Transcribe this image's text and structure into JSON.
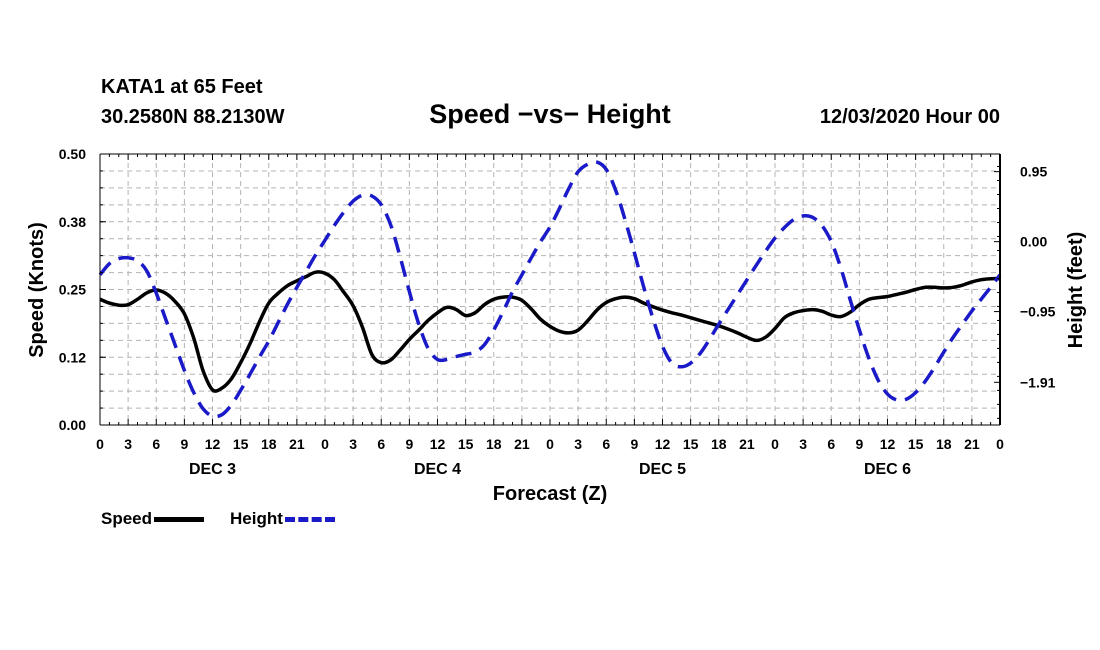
{
  "header": {
    "station": "KATA1 at 65 Feet",
    "coords": "30.2580N 88.2130W",
    "title": "Speed −vs− Height",
    "run_time": "12/03/2020 Hour 00"
  },
  "chart_data": {
    "type": "line",
    "title": "Speed −vs− Height",
    "xlabel": "Forecast (Z)",
    "ylabel": "Speed (Knots)",
    "ylabel_right": "Height (feet)",
    "x_unit": "hours from 12/03/2020 00Z",
    "xlim": [
      0,
      96
    ],
    "ylim": [
      0,
      0.5
    ],
    "ylim_right": [
      -2.49,
      1.19
    ],
    "grid": true,
    "yticks": [
      {
        "value": 0.0,
        "label": "0.00"
      },
      {
        "value": 0.125,
        "label": "0.12"
      },
      {
        "value": 0.25,
        "label": "0.25"
      },
      {
        "value": 0.375,
        "label": "0.38"
      },
      {
        "value": 0.5,
        "label": "0.50"
      }
    ],
    "yticks_right": [
      {
        "value": 0.95,
        "label": "0.95"
      },
      {
        "value": 0.0,
        "label": "0.00"
      },
      {
        "value": -0.95,
        "label": "−0.95"
      },
      {
        "value": -1.91,
        "label": "−1.91"
      }
    ],
    "xticks": [
      {
        "x": 0,
        "label": "0"
      },
      {
        "x": 3,
        "label": "3"
      },
      {
        "x": 6,
        "label": "6"
      },
      {
        "x": 9,
        "label": "9"
      },
      {
        "x": 12,
        "label": "12"
      },
      {
        "x": 15,
        "label": "15"
      },
      {
        "x": 18,
        "label": "18"
      },
      {
        "x": 21,
        "label": "21"
      },
      {
        "x": 24,
        "label": "0"
      },
      {
        "x": 27,
        "label": "3"
      },
      {
        "x": 30,
        "label": "6"
      },
      {
        "x": 33,
        "label": "9"
      },
      {
        "x": 36,
        "label": "12"
      },
      {
        "x": 39,
        "label": "15"
      },
      {
        "x": 42,
        "label": "18"
      },
      {
        "x": 45,
        "label": "21"
      },
      {
        "x": 48,
        "label": "0"
      },
      {
        "x": 51,
        "label": "3"
      },
      {
        "x": 54,
        "label": "6"
      },
      {
        "x": 57,
        "label": "9"
      },
      {
        "x": 60,
        "label": "12"
      },
      {
        "x": 63,
        "label": "15"
      },
      {
        "x": 66,
        "label": "18"
      },
      {
        "x": 69,
        "label": "21"
      },
      {
        "x": 72,
        "label": "0"
      },
      {
        "x": 75,
        "label": "3"
      },
      {
        "x": 78,
        "label": "6"
      },
      {
        "x": 81,
        "label": "9"
      },
      {
        "x": 84,
        "label": "12"
      },
      {
        "x": 87,
        "label": "15"
      },
      {
        "x": 90,
        "label": "18"
      },
      {
        "x": 93,
        "label": "21"
      },
      {
        "x": 96,
        "label": "0"
      }
    ],
    "day_labels": [
      {
        "x": 12,
        "label": "DEC 3"
      },
      {
        "x": 36,
        "label": "DEC 4"
      },
      {
        "x": 60,
        "label": "DEC 5"
      },
      {
        "x": 84,
        "label": "DEC 6"
      }
    ],
    "series": [
      {
        "name": "Speed",
        "axis": "left",
        "color": "#000000",
        "dash": "solid",
        "points": [
          [
            0,
            0.232
          ],
          [
            1,
            0.225
          ],
          [
            2,
            0.221
          ],
          [
            3,
            0.222
          ],
          [
            4,
            0.232
          ],
          [
            5,
            0.244
          ],
          [
            6,
            0.249
          ],
          [
            7,
            0.243
          ],
          [
            8,
            0.228
          ],
          [
            9,
            0.205
          ],
          [
            10,
            0.16
          ],
          [
            11,
            0.1
          ],
          [
            12,
            0.065
          ],
          [
            13,
            0.068
          ],
          [
            14,
            0.085
          ],
          [
            15,
            0.115
          ],
          [
            16,
            0.15
          ],
          [
            17,
            0.19
          ],
          [
            18,
            0.225
          ],
          [
            19,
            0.243
          ],
          [
            20,
            0.257
          ],
          [
            21,
            0.266
          ],
          [
            22,
            0.274
          ],
          [
            23,
            0.282
          ],
          [
            24,
            0.28
          ],
          [
            25,
            0.268
          ],
          [
            26,
            0.245
          ],
          [
            27,
            0.22
          ],
          [
            28,
            0.18
          ],
          [
            29,
            0.13
          ],
          [
            30,
            0.115
          ],
          [
            31,
            0.12
          ],
          [
            32,
            0.138
          ],
          [
            33,
            0.158
          ],
          [
            34,
            0.175
          ],
          [
            35,
            0.193
          ],
          [
            36,
            0.207
          ],
          [
            37,
            0.217
          ],
          [
            38,
            0.213
          ],
          [
            39,
            0.202
          ],
          [
            40,
            0.207
          ],
          [
            41,
            0.222
          ],
          [
            42,
            0.232
          ],
          [
            43,
            0.236
          ],
          [
            44,
            0.236
          ],
          [
            45,
            0.23
          ],
          [
            46,
            0.214
          ],
          [
            47,
            0.195
          ],
          [
            48,
            0.182
          ],
          [
            49,
            0.173
          ],
          [
            50,
            0.17
          ],
          [
            51,
            0.175
          ],
          [
            52,
            0.192
          ],
          [
            53,
            0.212
          ],
          [
            54,
            0.226
          ],
          [
            55,
            0.233
          ],
          [
            56,
            0.236
          ],
          [
            57,
            0.233
          ],
          [
            58,
            0.225
          ],
          [
            59,
            0.218
          ],
          [
            60,
            0.212
          ],
          [
            61,
            0.207
          ],
          [
            62,
            0.203
          ],
          [
            63,
            0.198
          ],
          [
            64,
            0.193
          ],
          [
            65,
            0.188
          ],
          [
            66,
            0.183
          ],
          [
            67,
            0.177
          ],
          [
            68,
            0.17
          ],
          [
            69,
            0.162
          ],
          [
            70,
            0.156
          ],
          [
            71,
            0.162
          ],
          [
            72,
            0.178
          ],
          [
            73,
            0.198
          ],
          [
            74,
            0.207
          ],
          [
            75,
            0.211
          ],
          [
            76,
            0.213
          ],
          [
            77,
            0.21
          ],
          [
            78,
            0.203
          ],
          [
            79,
            0.2
          ],
          [
            80,
            0.208
          ],
          [
            81,
            0.222
          ],
          [
            82,
            0.232
          ],
          [
            83,
            0.235
          ],
          [
            84,
            0.237
          ],
          [
            85,
            0.241
          ],
          [
            86,
            0.245
          ],
          [
            87,
            0.25
          ],
          [
            88,
            0.254
          ],
          [
            89,
            0.254
          ],
          [
            90,
            0.253
          ],
          [
            91,
            0.254
          ],
          [
            92,
            0.258
          ],
          [
            93,
            0.264
          ],
          [
            94,
            0.268
          ],
          [
            95,
            0.27
          ],
          [
            96,
            0.27
          ]
        ]
      },
      {
        "name": "Height",
        "axis": "right",
        "color": "#1a1ac8",
        "dash": "dashed",
        "points": [
          [
            0,
            -0.45
          ],
          [
            1,
            -0.3
          ],
          [
            2,
            -0.23
          ],
          [
            3,
            -0.22
          ],
          [
            4,
            -0.26
          ],
          [
            5,
            -0.4
          ],
          [
            6,
            -0.7
          ],
          [
            7,
            -1.05
          ],
          [
            8,
            -1.4
          ],
          [
            9,
            -1.75
          ],
          [
            10,
            -2.05
          ],
          [
            11,
            -2.27
          ],
          [
            12,
            -2.37
          ],
          [
            13,
            -2.35
          ],
          [
            14,
            -2.22
          ],
          [
            15,
            -2.02
          ],
          [
            16,
            -1.8
          ],
          [
            17,
            -1.57
          ],
          [
            18,
            -1.35
          ],
          [
            19,
            -1.1
          ],
          [
            20,
            -0.85
          ],
          [
            21,
            -0.62
          ],
          [
            22,
            -0.4
          ],
          [
            23,
            -0.18
          ],
          [
            24,
            0.02
          ],
          [
            25,
            0.22
          ],
          [
            26,
            0.4
          ],
          [
            27,
            0.55
          ],
          [
            28,
            0.63
          ],
          [
            29,
            0.62
          ],
          [
            30,
            0.5
          ],
          [
            31,
            0.23
          ],
          [
            32,
            -0.2
          ],
          [
            33,
            -0.68
          ],
          [
            34,
            -1.12
          ],
          [
            35,
            -1.45
          ],
          [
            36,
            -1.6
          ],
          [
            37,
            -1.6
          ],
          [
            38,
            -1.56
          ],
          [
            39,
            -1.53
          ],
          [
            40,
            -1.5
          ],
          [
            41,
            -1.4
          ],
          [
            42,
            -1.2
          ],
          [
            43,
            -0.95
          ],
          [
            44,
            -0.68
          ],
          [
            45,
            -0.45
          ],
          [
            46,
            -0.22
          ],
          [
            47,
            0.0
          ],
          [
            48,
            0.2
          ],
          [
            49,
            0.45
          ],
          [
            50,
            0.72
          ],
          [
            51,
            0.95
          ],
          [
            52,
            1.05
          ],
          [
            53,
            1.08
          ],
          [
            54,
            0.98
          ],
          [
            55,
            0.7
          ],
          [
            56,
            0.3
          ],
          [
            57,
            -0.15
          ],
          [
            58,
            -0.62
          ],
          [
            59,
            -1.05
          ],
          [
            60,
            -1.42
          ],
          [
            61,
            -1.65
          ],
          [
            62,
            -1.7
          ],
          [
            63,
            -1.65
          ],
          [
            64,
            -1.52
          ],
          [
            65,
            -1.33
          ],
          [
            66,
            -1.12
          ],
          [
            67,
            -0.92
          ],
          [
            68,
            -0.72
          ],
          [
            69,
            -0.52
          ],
          [
            70,
            -0.32
          ],
          [
            71,
            -0.13
          ],
          [
            72,
            0.05
          ],
          [
            73,
            0.19
          ],
          [
            74,
            0.3
          ],
          [
            75,
            0.35
          ],
          [
            76,
            0.33
          ],
          [
            77,
            0.22
          ],
          [
            78,
            0.0
          ],
          [
            79,
            -0.35
          ],
          [
            80,
            -0.78
          ],
          [
            81,
            -1.2
          ],
          [
            82,
            -1.58
          ],
          [
            83,
            -1.88
          ],
          [
            84,
            -2.07
          ],
          [
            85,
            -2.15
          ],
          [
            86,
            -2.14
          ],
          [
            87,
            -2.05
          ],
          [
            88,
            -1.9
          ],
          [
            89,
            -1.71
          ],
          [
            90,
            -1.5
          ],
          [
            91,
            -1.3
          ],
          [
            92,
            -1.12
          ],
          [
            93,
            -0.94
          ],
          [
            94,
            -0.78
          ],
          [
            95,
            -0.62
          ],
          [
            96,
            -0.45
          ]
        ]
      }
    ]
  },
  "legend": {
    "speed_label": "Speed",
    "height_label": "Height"
  }
}
